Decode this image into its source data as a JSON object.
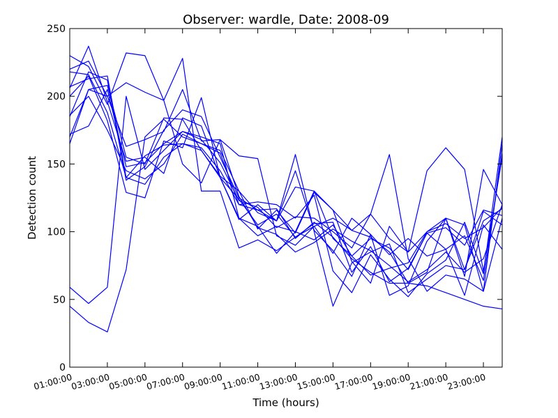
{
  "chart_data": {
    "type": "line",
    "title": "Observer: wardle, Date: 2008-09",
    "xlabel": "Time (hours)",
    "ylabel": "Detection count",
    "x": [
      1,
      2,
      3,
      4,
      5,
      6,
      7,
      8,
      9,
      10,
      11,
      12,
      13,
      14,
      15,
      16,
      17,
      18,
      19,
      20,
      21,
      22,
      23,
      24
    ],
    "xlim": [
      1,
      24
    ],
    "ylim": [
      0,
      250
    ],
    "x_tick_values": [
      1,
      3,
      5,
      7,
      9,
      11,
      13,
      15,
      17,
      19,
      21,
      23
    ],
    "x_tick_labels": [
      "01:00:00",
      "03:00:00",
      "05:00:00",
      "07:00:00",
      "09:00:00",
      "11:00:00",
      "13:00:00",
      "15:00:00",
      "17:00:00",
      "19:00:00",
      "21:00:00",
      "23:00:00"
    ],
    "y_ticks": [
      0,
      50,
      100,
      150,
      200,
      250
    ],
    "line_color": "#0000ff",
    "grid": false,
    "series": [
      {
        "values": [
          45,
          33,
          26,
          72,
          170,
          183,
          170,
          165,
          158,
          120,
          116,
          117,
          95,
          107,
          96,
          80,
          70,
          62,
          62,
          60,
          55,
          50,
          45,
          43
        ]
      },
      {
        "values": [
          59,
          47,
          59,
          200,
          146,
          160,
          174,
          170,
          165,
          110,
          97,
          104,
          100,
          130,
          95,
          82,
          68,
          73,
          77,
          100,
          106,
          95,
          103,
          118
        ]
      },
      {
        "values": [
          230,
          222,
          194,
          232,
          230,
          197,
          228,
          130,
          130,
          88,
          94,
          86,
          96,
          104,
          110,
          101,
          96,
          85,
          62,
          70,
          110,
          72,
          115,
          105
        ]
      },
      {
        "values": [
          220,
          226,
          200,
          210,
          203,
          197,
          150,
          136,
          168,
          126,
          103,
          98,
          85,
          92,
          102,
          93,
          86,
          75,
          63,
          72,
          85,
          70,
          80,
          120
        ]
      },
      {
        "values": [
          206,
          237,
          196,
          152,
          155,
          143,
          184,
          178,
          140,
          110,
          104,
          84,
          100,
          94,
          105,
          82,
          95,
          88,
          72,
          99,
          87,
          97,
          64,
          158
        ]
      },
      {
        "values": [
          218,
          216,
          188,
          140,
          156,
          164,
          165,
          160,
          140,
          124,
          105,
          113,
          96,
          106,
          107,
          70,
          89,
          63,
          73,
          99,
          103,
          90,
          116,
          112
        ]
      },
      {
        "values": [
          165,
          205,
          200,
          163,
          168,
          174,
          205,
          167,
          168,
          156,
          154,
          97,
          90,
          104,
          84,
          110,
          98,
          83,
          95,
          82,
          87,
          53,
          105,
          87
        ]
      },
      {
        "values": [
          170,
          205,
          208,
          155,
          150,
          184,
          183,
          160,
          141,
          130,
          114,
          108,
          133,
          130,
          116,
          101,
          113,
          157,
          80,
          56,
          68,
          65,
          56,
          165
        ]
      },
      {
        "values": [
          172,
          178,
          205,
          148,
          151,
          165,
          174,
          168,
          151,
          123,
          118,
          103,
          111,
          110,
          100,
          88,
          113,
          95,
          85,
          145,
          162,
          146,
          71,
          155
        ]
      },
      {
        "values": [
          186,
          200,
          175,
          145,
          139,
          150,
          172,
          165,
          160,
          130,
          102,
          116,
          99,
          129,
          116,
          78,
          62,
          104,
          85,
          100,
          110,
          67,
          146,
          120
        ]
      },
      {
        "values": [
          207,
          213,
          215,
          140,
          135,
          155,
          165,
          162,
          145,
          120,
          122,
          120,
          110,
          127,
          71,
          55,
          83,
          65,
          52,
          69,
          79,
          107,
          69,
          170
        ]
      },
      {
        "values": [
          200,
          215,
          182,
          129,
          125,
          167,
          162,
          199,
          140,
          109,
          120,
          108,
          145,
          101,
          86,
          67,
          98,
          53,
          60,
          93,
          110,
          105,
          56,
          110
        ]
      },
      {
        "values": [
          185,
          218,
          212,
          138,
          148,
          175,
          190,
          185,
          155,
          125,
          116,
          108,
          157,
          100,
          45,
          77,
          85,
          91,
          55,
          65,
          75,
          72,
          108,
          117
        ]
      }
    ]
  }
}
